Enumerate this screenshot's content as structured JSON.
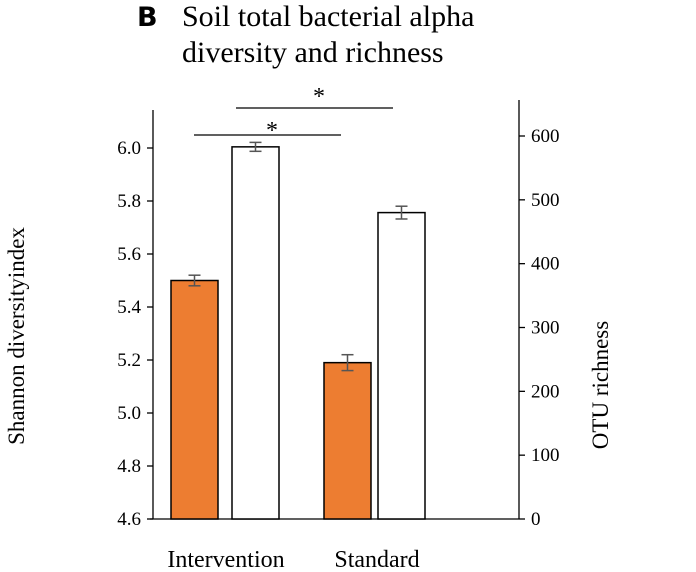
{
  "figure": {
    "panel_letter": "B",
    "title_lines": [
      "Soil total bacterial alpha",
      "diversity and richness"
    ]
  },
  "chart_data": {
    "type": "bar",
    "title": "Soil total bacterial alpha diversity and richness",
    "categories": [
      "Intervention",
      "Standard"
    ],
    "series": [
      {
        "name": "Shannon diversity index",
        "axis": "left",
        "color": "#ed7d31",
        "values": [
          5.5,
          5.19
        ],
        "errors": [
          0.02,
          0.03
        ]
      },
      {
        "name": "OTU richness",
        "axis": "right",
        "color": "#ffffff",
        "values": [
          583,
          480
        ],
        "errors": [
          7,
          10
        ]
      }
    ],
    "y_left": {
      "label": "Shannon diversityindex",
      "range": [
        4.6,
        6.2
      ],
      "ticks": [
        "4.6",
        "4.8",
        "5.0",
        "5.2",
        "5.4",
        "5.6",
        "5.8",
        "6.0"
      ]
    },
    "y_right": {
      "label": "OTU richness",
      "range": [
        0,
        660
      ],
      "ticks": [
        "0",
        "100",
        "200",
        "300",
        "400",
        "500",
        "600"
      ]
    },
    "significance": [
      {
        "label": "*",
        "between": "Intervention vs Standard (Shannon)"
      },
      {
        "label": "*",
        "between": "Intervention vs Standard (OTU)"
      }
    ],
    "grid": false,
    "legend": "none"
  }
}
